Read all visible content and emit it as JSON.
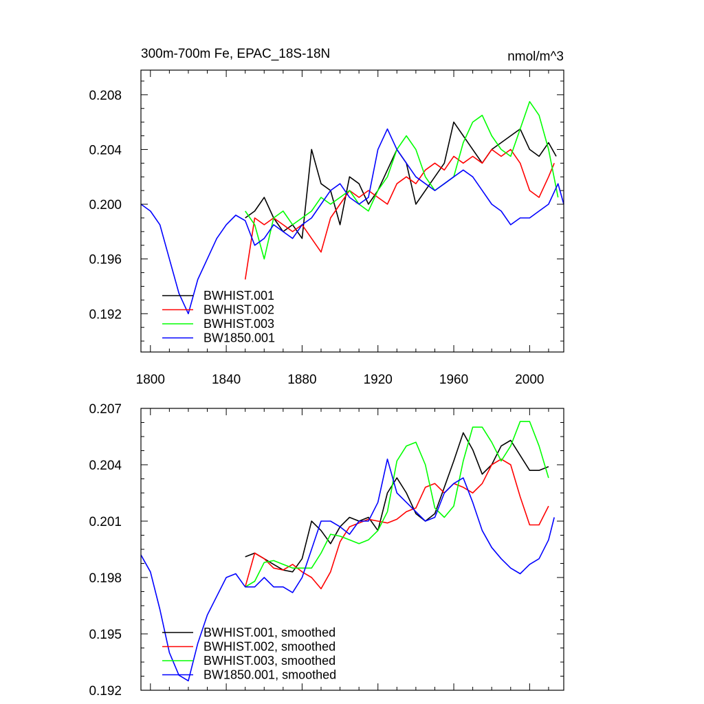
{
  "chart_data": [
    {
      "type": "line",
      "title_left": "300m-700m Fe, EPAC_18S-18N",
      "title_right": "nmol/m^3",
      "xlim": [
        1795,
        2018
      ],
      "ylim": [
        0.1892,
        0.2098
      ],
      "x_ticks": [
        1800,
        1840,
        1880,
        1920,
        1960,
        2000
      ],
      "x_tick_labels": [
        "1800",
        "1840",
        "1880",
        "1920",
        "1960",
        "2000"
      ],
      "y_ticks": [
        0.192,
        0.196,
        0.2,
        0.204,
        0.208
      ],
      "y_tick_labels": [
        "0.192",
        "0.196",
        "0.200",
        "0.204",
        "0.208"
      ],
      "legend_position": "bottom-left",
      "series": [
        {
          "name": "BWHIST.001",
          "color": "#000000",
          "x": [
            1850,
            1855,
            1860,
            1865,
            1870,
            1875,
            1880,
            1885,
            1890,
            1895,
            1900,
            1905,
            1910,
            1915,
            1920,
            1925,
            1930,
            1935,
            1940,
            1945,
            1950,
            1955,
            1960,
            1965,
            1970,
            1975,
            1980,
            1985,
            1990,
            1995,
            2000,
            2005,
            2010,
            2014
          ],
          "values": [
            0.199,
            0.1995,
            0.2005,
            0.199,
            0.198,
            0.1985,
            0.1975,
            0.204,
            0.2015,
            0.201,
            0.1985,
            0.202,
            0.2015,
            0.2,
            0.201,
            0.2025,
            0.204,
            0.203,
            0.2,
            0.201,
            0.202,
            0.203,
            0.206,
            0.205,
            0.204,
            0.203,
            0.204,
            0.2045,
            0.205,
            0.2055,
            0.204,
            0.2035,
            0.2045,
            0.2035
          ]
        },
        {
          "name": "BWHIST.002",
          "color": "#ff0000",
          "x": [
            1850,
            1855,
            1860,
            1865,
            1870,
            1875,
            1880,
            1885,
            1890,
            1895,
            1900,
            1905,
            1910,
            1915,
            1920,
            1925,
            1930,
            1935,
            1940,
            1945,
            1950,
            1955,
            1960,
            1965,
            1970,
            1975,
            1980,
            1985,
            1990,
            1995,
            2000,
            2005,
            2010,
            2013
          ],
          "values": [
            0.1945,
            0.199,
            0.1985,
            0.199,
            0.1985,
            0.198,
            0.1985,
            0.1975,
            0.1965,
            0.199,
            0.2,
            0.201,
            0.2005,
            0.201,
            0.2005,
            0.2,
            0.2015,
            0.202,
            0.2015,
            0.2025,
            0.203,
            0.2025,
            0.2035,
            0.203,
            0.2035,
            0.203,
            0.204,
            0.2035,
            0.204,
            0.203,
            0.201,
            0.2005,
            0.202,
            0.203
          ]
        },
        {
          "name": "BWHIST.003",
          "color": "#00ff00",
          "x": [
            1850,
            1855,
            1860,
            1865,
            1870,
            1875,
            1880,
            1885,
            1890,
            1895,
            1900,
            1905,
            1910,
            1915,
            1920,
            1925,
            1930,
            1935,
            1940,
            1945,
            1950,
            1955,
            1960,
            1965,
            1970,
            1975,
            1980,
            1985,
            1990,
            1995,
            2000,
            2005,
            2010,
            2015
          ],
          "values": [
            0.1995,
            0.1985,
            0.196,
            0.199,
            0.1995,
            0.1985,
            0.199,
            0.1995,
            0.2005,
            0.2,
            0.2005,
            0.201,
            0.2,
            0.1995,
            0.201,
            0.202,
            0.204,
            0.205,
            0.204,
            0.202,
            0.201,
            0.2015,
            0.202,
            0.2045,
            0.206,
            0.2065,
            0.205,
            0.204,
            0.2035,
            0.2055,
            0.2075,
            0.2065,
            0.204,
            0.2005
          ]
        },
        {
          "name": "BW1850.001",
          "color": "#0000ff",
          "x": [
            1795,
            1800,
            1805,
            1810,
            1815,
            1820,
            1825,
            1830,
            1835,
            1840,
            1845,
            1850,
            1855,
            1860,
            1865,
            1870,
            1875,
            1880,
            1885,
            1890,
            1895,
            1900,
            1905,
            1910,
            1915,
            1920,
            1925,
            1930,
            1935,
            1940,
            1945,
            1950,
            1955,
            1960,
            1965,
            1970,
            1975,
            1980,
            1985,
            1990,
            1995,
            2000,
            2005,
            2010,
            2015,
            2018
          ],
          "values": [
            0.2,
            0.1995,
            0.1985,
            0.196,
            0.1935,
            0.192,
            0.1945,
            0.196,
            0.1975,
            0.1985,
            0.1992,
            0.1988,
            0.197,
            0.1975,
            0.1985,
            0.198,
            0.1975,
            0.1985,
            0.199,
            0.2,
            0.201,
            0.2015,
            0.2005,
            0.2,
            0.2005,
            0.204,
            0.2055,
            0.204,
            0.203,
            0.202,
            0.2015,
            0.201,
            0.2015,
            0.202,
            0.2025,
            0.202,
            0.201,
            0.2,
            0.1995,
            0.1985,
            0.199,
            0.199,
            0.1995,
            0.2,
            0.2015,
            0.2
          ]
        }
      ]
    },
    {
      "type": "line",
      "xlim": [
        1795,
        2018
      ],
      "ylim": [
        0.192,
        0.207
      ],
      "x_ticks": [
        1800,
        1840,
        1880,
        1920,
        1960,
        2000
      ],
      "y_ticks": [
        0.192,
        0.195,
        0.198,
        0.201,
        0.204,
        0.207
      ],
      "y_tick_labels": [
        "0.192",
        "0.195",
        "0.198",
        "0.201",
        "0.204",
        "0.207"
      ],
      "legend_position": "bottom-left",
      "series": [
        {
          "name": "BWHIST.001, smoothed",
          "color": "#000000",
          "x": [
            1850,
            1855,
            1860,
            1865,
            1870,
            1875,
            1880,
            1885,
            1890,
            1895,
            1900,
            1905,
            1910,
            1915,
            1920,
            1925,
            1930,
            1935,
            1940,
            1945,
            1950,
            1955,
            1960,
            1965,
            1970,
            1975,
            1980,
            1985,
            1990,
            1995,
            2000,
            2005,
            2010
          ],
          "values": [
            0.1991,
            0.1993,
            0.199,
            0.1987,
            0.1984,
            0.1983,
            0.199,
            0.201,
            0.2005,
            0.1998,
            0.2007,
            0.2012,
            0.201,
            0.2012,
            0.2005,
            0.2025,
            0.2033,
            0.2025,
            0.2014,
            0.201,
            0.2014,
            0.2028,
            0.2042,
            0.2057,
            0.2048,
            0.2035,
            0.204,
            0.205,
            0.2053,
            0.2045,
            0.2037,
            0.2037,
            0.2039
          ]
        },
        {
          "name": "BWHIST.002, smoothed",
          "color": "#ff0000",
          "x": [
            1850,
            1855,
            1860,
            1865,
            1870,
            1875,
            1880,
            1885,
            1890,
            1895,
            1900,
            1905,
            1910,
            1915,
            1920,
            1925,
            1930,
            1935,
            1940,
            1945,
            1950,
            1955,
            1960,
            1965,
            1970,
            1975,
            1980,
            1985,
            1990,
            1995,
            2000,
            2005,
            2010
          ],
          "values": [
            0.1975,
            0.1993,
            0.199,
            0.1985,
            0.1984,
            0.1987,
            0.1983,
            0.198,
            0.1974,
            0.1983,
            0.1999,
            0.2007,
            0.2009,
            0.2011,
            0.201,
            0.2009,
            0.2011,
            0.2015,
            0.2017,
            0.2028,
            0.203,
            0.2025,
            0.203,
            0.2028,
            0.2025,
            0.203,
            0.204,
            0.2043,
            0.204,
            0.2023,
            0.2008,
            0.2008,
            0.2018
          ]
        },
        {
          "name": "BWHIST.003, smoothed",
          "color": "#00ff00",
          "x": [
            1850,
            1855,
            1860,
            1865,
            1870,
            1875,
            1880,
            1885,
            1890,
            1895,
            1900,
            1905,
            1910,
            1915,
            1920,
            1925,
            1930,
            1935,
            1940,
            1945,
            1950,
            1955,
            1960,
            1965,
            1970,
            1975,
            1980,
            1985,
            1990,
            1995,
            2000,
            2005,
            2010
          ],
          "values": [
            0.1975,
            0.1978,
            0.1988,
            0.1989,
            0.1987,
            0.1985,
            0.1985,
            0.1985,
            0.1993,
            0.2003,
            0.2002,
            0.2,
            0.1998,
            0.2,
            0.2005,
            0.2015,
            0.2042,
            0.205,
            0.2052,
            0.204,
            0.2017,
            0.2012,
            0.2018,
            0.2042,
            0.206,
            0.206,
            0.2052,
            0.2042,
            0.205,
            0.2063,
            0.2063,
            0.205,
            0.2033
          ]
        },
        {
          "name": "BW1850.001, smoothed",
          "color": "#0000ff",
          "x": [
            1795,
            1800,
            1805,
            1810,
            1815,
            1820,
            1825,
            1830,
            1835,
            1840,
            1845,
            1850,
            1855,
            1860,
            1865,
            1870,
            1875,
            1880,
            1885,
            1890,
            1895,
            1900,
            1905,
            1910,
            1915,
            1920,
            1925,
            1930,
            1935,
            1940,
            1945,
            1950,
            1955,
            1960,
            1965,
            1970,
            1975,
            1980,
            1985,
            1990,
            1995,
            2000,
            2005,
            2010,
            2013
          ],
          "values": [
            0.1992,
            0.1983,
            0.1963,
            0.194,
            0.1928,
            0.1925,
            0.1945,
            0.196,
            0.197,
            0.198,
            0.1982,
            0.1975,
            0.1975,
            0.198,
            0.1975,
            0.1975,
            0.1972,
            0.198,
            0.1995,
            0.201,
            0.201,
            0.2007,
            0.2003,
            0.201,
            0.201,
            0.202,
            0.2043,
            0.2025,
            0.202,
            0.2015,
            0.201,
            0.2012,
            0.2025,
            0.203,
            0.2033,
            0.202,
            0.2005,
            0.1996,
            0.199,
            0.1985,
            0.1982,
            0.1987,
            0.199,
            0.2,
            0.2012
          ]
        }
      ]
    }
  ]
}
